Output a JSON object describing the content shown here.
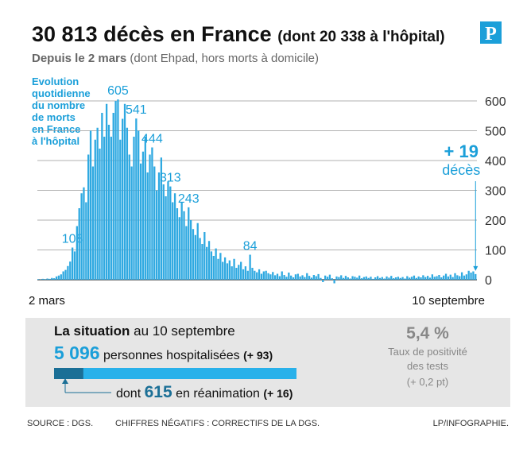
{
  "header": {
    "title": "30 813 décès  en France",
    "title_note": "(dont 20 338 à l'hôpital)",
    "subtitle_bold": "Depuis le 2 mars",
    "subtitle": "(dont Ehpad, hors morts à domicile)",
    "logo": "P"
  },
  "chart_data": {
    "type": "bar",
    "side_label": [
      "Evolution",
      "quotidienne",
      "du nombre",
      "de morts",
      "en France",
      "à l'hôpital"
    ],
    "x_axis_labels": [
      "2 mars",
      "10 septembre"
    ],
    "values": [
      2,
      1,
      3,
      2,
      4,
      3,
      6,
      5,
      11,
      14,
      18,
      28,
      33,
      46,
      61,
      108,
      95,
      180,
      240,
      290,
      310,
      260,
      420,
      500,
      380,
      470,
      510,
      440,
      560,
      480,
      590,
      520,
      480,
      560,
      600,
      605,
      470,
      540,
      590,
      510,
      420,
      380,
      480,
      541,
      500,
      390,
      430,
      480,
      360,
      420,
      444,
      380,
      300,
      360,
      410,
      320,
      280,
      330,
      313,
      260,
      290,
      240,
      210,
      260,
      230,
      180,
      243,
      200,
      170,
      150,
      190,
      140,
      120,
      160,
      110,
      130,
      95,
      80,
      105,
      70,
      90,
      60,
      75,
      55,
      65,
      45,
      70,
      40,
      50,
      60,
      35,
      45,
      30,
      84,
      40,
      30,
      25,
      35,
      20,
      28,
      30,
      22,
      18,
      26,
      15,
      20,
      12,
      28,
      16,
      10,
      24,
      14,
      8,
      18,
      20,
      11,
      15,
      9,
      22,
      13,
      7,
      16,
      12,
      19,
      6,
      -8,
      14,
      10,
      17,
      5,
      -12,
      11,
      9,
      15,
      6,
      13,
      8,
      4,
      12,
      10,
      7,
      14,
      5,
      9,
      11,
      6,
      10,
      3,
      8,
      12,
      6,
      9,
      4,
      11,
      7,
      13,
      5,
      8,
      10,
      6,
      9,
      4,
      12,
      7,
      10,
      14,
      6,
      11,
      8,
      15,
      9,
      13,
      7,
      18,
      10,
      12,
      16,
      8,
      14,
      20,
      11,
      17,
      9,
      22,
      15,
      12,
      25,
      14,
      18,
      30,
      24,
      28,
      19
    ],
    "value_labels": [
      null,
      null,
      null,
      null,
      null,
      null,
      null,
      null,
      null,
      null,
      null,
      null,
      null,
      null,
      null,
      "108",
      null,
      null,
      null,
      null,
      null,
      null,
      null,
      null,
      null,
      null,
      null,
      null,
      null,
      null,
      null,
      null,
      null,
      null,
      null,
      "605",
      null,
      null,
      null,
      null,
      null,
      null,
      null,
      "541",
      null,
      null,
      null,
      null,
      null,
      null,
      "444",
      null,
      null,
      null,
      null,
      null,
      null,
      null,
      "313",
      null,
      null,
      null,
      null,
      null,
      null,
      null,
      "243",
      null,
      null,
      null,
      null,
      null,
      null,
      null,
      null,
      null,
      null,
      null,
      null,
      null,
      null,
      null,
      null,
      null,
      null,
      null,
      null,
      null,
      null,
      null,
      null,
      null,
      null,
      "84",
      null,
      null,
      null,
      null,
      null,
      null,
      null,
      null,
      null,
      null,
      null,
      null,
      null,
      null,
      null,
      null,
      null,
      null,
      null,
      null,
      null,
      null,
      null,
      null,
      null,
      null,
      null,
      null,
      null,
      null,
      null,
      null,
      null,
      null,
      null,
      null,
      null,
      null,
      null,
      null,
      null,
      null,
      null,
      null,
      null,
      null,
      null,
      null,
      null,
      null,
      null,
      null,
      null,
      null,
      null,
      null,
      null,
      null,
      null,
      null,
      null,
      null,
      null,
      null,
      null,
      null,
      null,
      null,
      null,
      null,
      null,
      null,
      null,
      null,
      null,
      null,
      null,
      null,
      null,
      null,
      null,
      null,
      null,
      null,
      null,
      null,
      null,
      null,
      null,
      null,
      null,
      null,
      null,
      null,
      null,
      null,
      null,
      null,
      "+ 19"
    ],
    "last_label_note": "décès",
    "color": "#2fa9e1",
    "ylim": [
      0,
      600
    ],
    "yticks": [
      0,
      100,
      200,
      300,
      400,
      500,
      600
    ],
    "grid": true
  },
  "situation": {
    "title_bold": "La situation",
    "title": "au 10 septembre",
    "hospitalized": 5096,
    "hospitalized_label": "5 096",
    "hospitalized_text": "personnes hospitalisées",
    "hospitalized_change": "(+ 93)",
    "icu_prefix": "dont",
    "icu": 615,
    "icu_text": "en réanimation",
    "icu_change": "(+ 16)",
    "positivity": "5,4 %",
    "positivity_lines": [
      "Taux de positivité",
      "des tests",
      "(+ 0,2 pt)"
    ]
  },
  "footer": [
    "SOURCE : DGS.",
    "CHIFFRES NÉGATIFS : CORRECTIFS DE LA DGS.",
    "LP/INFOGRAPHIE."
  ]
}
